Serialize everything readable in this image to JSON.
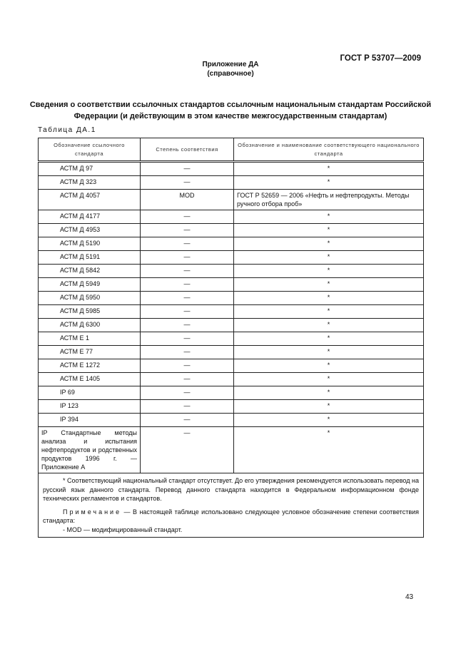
{
  "header": {
    "doc_id": "ГОСТ Р 53707—2009"
  },
  "annex": {
    "title": "Приложение ДА",
    "type": "(справочное)"
  },
  "title": "Сведения о соответствии ссылочных стандартов ссылочным национальным стандартам Российской Федерации  (и действующим в этом качестве межгосударственным стандартам)",
  "table_label": "Таблица ДА.1",
  "table": {
    "headers": [
      "Обозначение ссылочного стандарта",
      "Степень соответствия",
      "Обозначение и наименование соответствующего национального стандарта"
    ],
    "rows": [
      [
        "АСТМ Д 97",
        "—",
        "*"
      ],
      [
        "АСТМ Д 323",
        "—",
        "*"
      ],
      [
        "АСТМ Д 4057",
        "MOD",
        "ГОСТ Р 52659 — 2006 «Нефть и нефтепродукты. Методы ручного отбора проб»"
      ],
      [
        "АСТМ Д 4177",
        "—",
        "*"
      ],
      [
        "АСТМ Д 4953",
        "—",
        "*"
      ],
      [
        "АСТМ Д 5190",
        "—",
        "*"
      ],
      [
        "АСТМ Д 5191",
        "—",
        "*"
      ],
      [
        "АСТМ Д 5842",
        "—",
        "*"
      ],
      [
        "АСТМ Д 5949",
        "—",
        "*"
      ],
      [
        "АСТМ Д 5950",
        "—",
        "*"
      ],
      [
        "АСТМ Д 5985",
        "—",
        "*"
      ],
      [
        "АСТМ Д 6300",
        "—",
        "*"
      ],
      [
        "АСТМ Е 1",
        "—",
        "*"
      ],
      [
        "АСТМ Е 77",
        "—",
        "*"
      ],
      [
        "АСТМ Е 1272",
        "—",
        "*"
      ],
      [
        "АСТМ Е 1405",
        "—",
        "*"
      ],
      [
        "IP 69",
        "—",
        "*"
      ],
      [
        "IP 123",
        "—",
        "*"
      ],
      [
        "IP 394",
        "—",
        "*"
      ],
      [
        "IP Стандартные методы анализа и испытания нефтепродуктов и родственных продуктов 1996 г. — Приложение А",
        "—",
        "*"
      ]
    ],
    "footnote": "* Соответствующий национальный стандарт отсутствует. До его утверждения рекомендуется использовать перевод на русский язык данного стандарта. Перевод данного стандарта находится в Федеральном информационном фонде технических регламентов и стандартов.",
    "note_label": "Примечание",
    "note_text": " — В настоящей таблице использовано следующее условное обозначение степени соответствия стандарта:",
    "note_item": "- MOD — модифицированный стандарт."
  },
  "page_number": "43"
}
